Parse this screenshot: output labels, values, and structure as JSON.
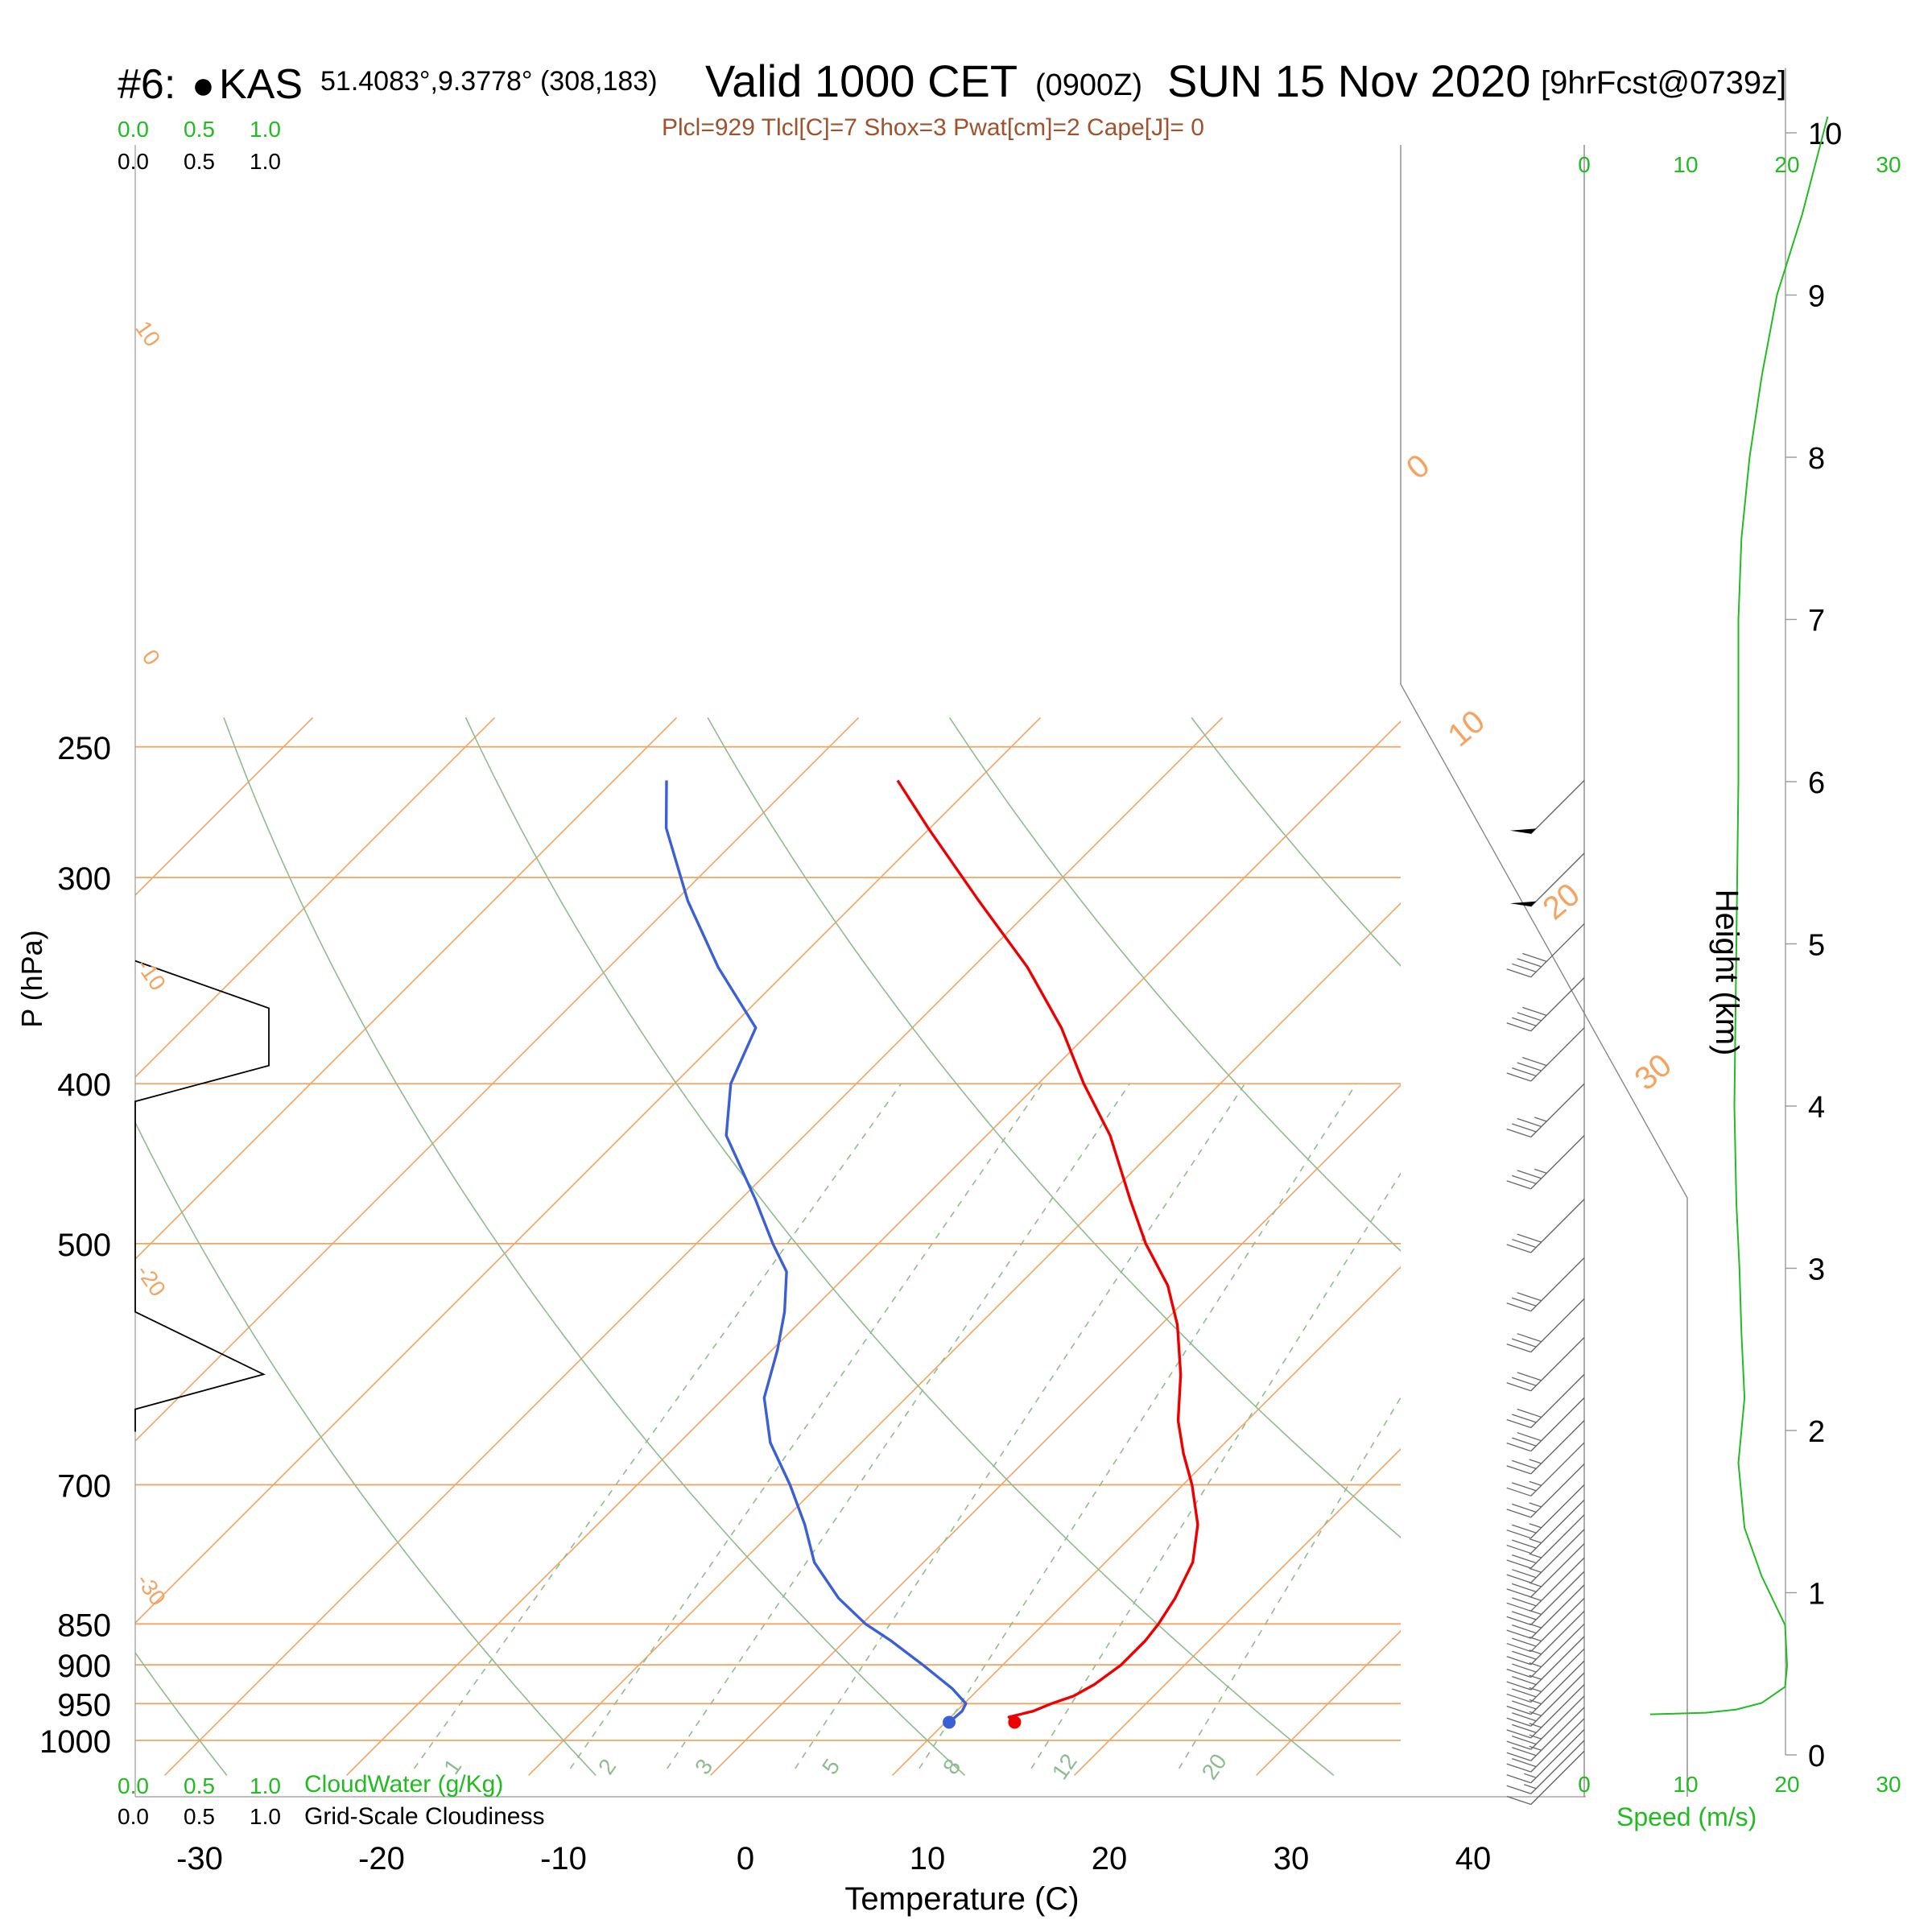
{
  "header": {
    "station_id": "#6: ",
    "station_marker": "●",
    "station_name": "KAS",
    "coords": "51.4083°,9.3778° (308,183)",
    "valid_prefix": "Valid 1000 CET",
    "utc": "(0900Z)",
    "date": "SUN 15 Nov 2020",
    "forecast": "[9hrFcst@0739z]",
    "indices": "Plcl=929 Tlcl[C]=7 Shox=3 Pwat[cm]=2 Cape[J]= 0"
  },
  "top_left_scale": {
    "green": [
      "0.0",
      "0.5",
      "1.0"
    ],
    "black": [
      "0.0",
      "0.5",
      "1.0"
    ]
  },
  "bottom_left_scale": {
    "green": [
      "0.0",
      "0.5",
      "1.0"
    ],
    "black": [
      "0.0",
      "0.5",
      "1.0"
    ],
    "cloudwater_label": "CloudWater (g/Kg)",
    "cloudiness_label": "Grid-Scale Cloudiness"
  },
  "colors": {
    "temperature": "#ee0000",
    "dewpoint": "#3b5fd4",
    "isobar": "#f4a460",
    "dry_adiabat": "#8fbc8f",
    "mixing_ratio": "#8fbc8f",
    "wind_speed": "#22bb22"
  },
  "chart_data": {
    "type": "skew-t log-p sounding",
    "xlabel": "Temperature (C)",
    "ylabel": "P (hPa)",
    "x_ticks": [
      -30,
      -20,
      -10,
      0,
      10,
      20,
      30,
      40
    ],
    "x_tick_labels": [
      "-30",
      "-20",
      "-10",
      "0",
      "10",
      "20",
      "30",
      "40"
    ],
    "pressure_ticks": [
      250,
      300,
      400,
      500,
      700,
      850,
      900,
      950,
      1000
    ],
    "pressure_tick_labels": [
      "250",
      "300",
      "400",
      "500",
      "700",
      "850",
      "900",
      "950",
      "1000"
    ],
    "height_label": "Height (km)",
    "height_ticks": [
      0,
      1,
      2,
      3,
      4,
      5,
      6,
      7,
      8,
      9,
      10
    ],
    "height_tick_labels": [
      "0",
      "1",
      "2",
      "3",
      "4",
      "5",
      "6",
      "7",
      "8",
      "9",
      "10"
    ],
    "isotherm_labels": [
      "10",
      "0",
      "-10",
      "-20",
      "-30"
    ],
    "upper_isotherm_labels": [
      "0",
      "10",
      "20",
      "30"
    ],
    "mixing_ratio_labels": [
      "1",
      "2",
      "3",
      "5",
      "8",
      "12",
      "20"
    ],
    "wind_speed_label": "Speed (m/s)",
    "wind_speed_ticks": [
      "0",
      "10",
      "20",
      "30"
    ],
    "surface": {
      "pressure": 975,
      "temperature": 13.8,
      "dewpoint": 10.2
    },
    "temperature_profile": [
      {
        "p": 975,
        "t": 13.8
      },
      {
        "p": 968,
        "t": 13.2
      },
      {
        "p": 960,
        "t": 14.2
      },
      {
        "p": 950,
        "t": 14.8
      },
      {
        "p": 940,
        "t": 15.6
      },
      {
        "p": 925,
        "t": 16.1
      },
      {
        "p": 900,
        "t": 16.5
      },
      {
        "p": 870,
        "t": 16.5
      },
      {
        "p": 850,
        "t": 16.3
      },
      {
        "p": 820,
        "t": 15.8
      },
      {
        "p": 780,
        "t": 14.8
      },
      {
        "p": 740,
        "t": 13.0
      },
      {
        "p": 700,
        "t": 10.5
      },
      {
        "p": 670,
        "t": 8.3
      },
      {
        "p": 640,
        "t": 6.2
      },
      {
        "p": 600,
        "t": 3.8
      },
      {
        "p": 560,
        "t": 0.9
      },
      {
        "p": 530,
        "t": -1.8
      },
      {
        "p": 500,
        "t": -5.3
      },
      {
        "p": 470,
        "t": -8.6
      },
      {
        "p": 430,
        "t": -13.2
      },
      {
        "p": 400,
        "t": -17.5
      },
      {
        "p": 370,
        "t": -21.8
      },
      {
        "p": 340,
        "t": -27.0
      },
      {
        "p": 310,
        "t": -33.3
      },
      {
        "p": 280,
        "t": -40.1
      },
      {
        "p": 262,
        "t": -44.4
      }
    ],
    "dewpoint_profile": [
      {
        "p": 975,
        "t": 10.2
      },
      {
        "p": 960,
        "t": 10.3
      },
      {
        "p": 950,
        "t": 10.1
      },
      {
        "p": 930,
        "t": 8.5
      },
      {
        "p": 900,
        "t": 5.6
      },
      {
        "p": 870,
        "t": 2.5
      },
      {
        "p": 850,
        "t": 0.2
      },
      {
        "p": 820,
        "t": -2.7
      },
      {
        "p": 780,
        "t": -6.0
      },
      {
        "p": 740,
        "t": -8.6
      },
      {
        "p": 700,
        "t": -11.6
      },
      {
        "p": 660,
        "t": -15.0
      },
      {
        "p": 620,
        "t": -17.8
      },
      {
        "p": 580,
        "t": -19.7
      },
      {
        "p": 550,
        "t": -21.4
      },
      {
        "p": 520,
        "t": -23.5
      },
      {
        "p": 500,
        "t": -25.8
      },
      {
        "p": 470,
        "t": -29.2
      },
      {
        "p": 430,
        "t": -34.3
      },
      {
        "p": 400,
        "t": -36.9
      },
      {
        "p": 370,
        "t": -38.6
      },
      {
        "p": 340,
        "t": -44.0
      },
      {
        "p": 310,
        "t": -49.3
      },
      {
        "p": 280,
        "t": -54.5
      },
      {
        "p": 262,
        "t": -57.1
      }
    ],
    "wind_speed_profile": [
      {
        "h": 0.25,
        "v": 6.5
      },
      {
        "h": 0.26,
        "v": 12
      },
      {
        "h": 0.28,
        "v": 15
      },
      {
        "h": 0.32,
        "v": 17.5
      },
      {
        "h": 0.42,
        "v": 19.8
      },
      {
        "h": 0.55,
        "v": 20
      },
      {
        "h": 0.8,
        "v": 19.8
      },
      {
        "h": 1.1,
        "v": 17.5
      },
      {
        "h": 1.4,
        "v": 15.8
      },
      {
        "h": 1.8,
        "v": 15.2
      },
      {
        "h": 2.2,
        "v": 15.8
      },
      {
        "h": 2.6,
        "v": 15.5
      },
      {
        "h": 3.0,
        "v": 15.3
      },
      {
        "h": 3.4,
        "v": 15.0
      },
      {
        "h": 4.0,
        "v": 14.8
      },
      {
        "h": 5.0,
        "v": 15.0
      },
      {
        "h": 6.0,
        "v": 15.2
      },
      {
        "h": 7.0,
        "v": 15.2
      },
      {
        "h": 7.5,
        "v": 15.5
      },
      {
        "h": 8.0,
        "v": 16.3
      },
      {
        "h": 8.5,
        "v": 17.5
      },
      {
        "h": 9.0,
        "v": 19.0
      },
      {
        "h": 9.5,
        "v": 21.5
      },
      {
        "h": 10.1,
        "v": 24.0
      }
    ],
    "cloudiness_profile": [
      {
        "p": 337,
        "c": 0
      },
      {
        "p": 360,
        "c": 1.0
      },
      {
        "p": 390,
        "c": 1.0
      },
      {
        "p": 410,
        "c": 0
      },
      {
        "p": 550,
        "c": 0
      },
      {
        "p": 600,
        "c": 0.96
      },
      {
        "p": 630,
        "c": 0
      },
      {
        "p": 650,
        "c": 0
      }
    ],
    "wind_barbs": [
      {
        "p": 262,
        "speed": 50
      },
      {
        "p": 290,
        "speed": 50
      },
      {
        "p": 320,
        "speed": 40
      },
      {
        "p": 345,
        "speed": 40
      },
      {
        "p": 370,
        "speed": 40
      },
      {
        "p": 400,
        "speed": 35
      },
      {
        "p": 430,
        "speed": 35
      },
      {
        "p": 470,
        "speed": 30
      },
      {
        "p": 510,
        "speed": 30
      },
      {
        "p": 540,
        "speed": 30
      },
      {
        "p": 570,
        "speed": 30
      },
      {
        "p": 600,
        "speed": 30
      },
      {
        "p": 620,
        "speed": 30
      },
      {
        "p": 640,
        "speed": 25
      },
      {
        "p": 660,
        "speed": 25
      },
      {
        "p": 680,
        "speed": 25
      },
      {
        "p": 700,
        "speed": 25
      },
      {
        "p": 715,
        "speed": 25
      },
      {
        "p": 730,
        "speed": 25
      },
      {
        "p": 745,
        "speed": 25
      },
      {
        "p": 760,
        "speed": 25
      },
      {
        "p": 775,
        "speed": 25
      },
      {
        "p": 790,
        "speed": 25
      },
      {
        "p": 805,
        "speed": 25
      },
      {
        "p": 820,
        "speed": 25
      },
      {
        "p": 835,
        "speed": 25
      },
      {
        "p": 850,
        "speed": 25
      },
      {
        "p": 865,
        "speed": 25
      },
      {
        "p": 880,
        "speed": 25
      },
      {
        "p": 895,
        "speed": 25
      },
      {
        "p": 910,
        "speed": 25
      },
      {
        "p": 925,
        "speed": 25
      },
      {
        "p": 940,
        "speed": 25
      },
      {
        "p": 955,
        "speed": 25
      },
      {
        "p": 970,
        "speed": 20
      },
      {
        "p": 985,
        "speed": 15
      },
      {
        "p": 1000,
        "speed": 15
      },
      {
        "p": 1015,
        "speed": 10
      }
    ]
  }
}
